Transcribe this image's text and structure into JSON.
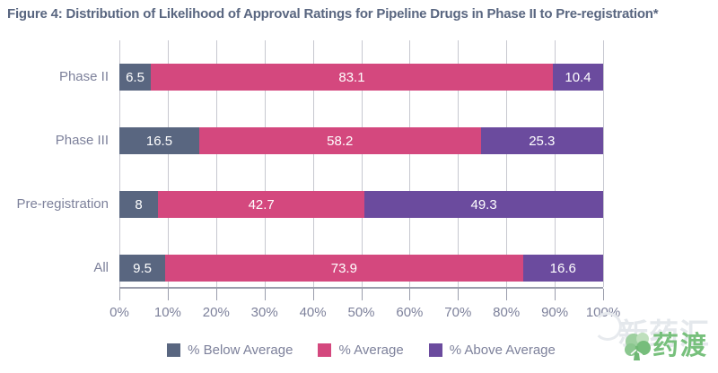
{
  "title": "Figure 4: Distribution of Likelihood of Approval Ratings for Pipeline Drugs in Phase II to Pre-registration*",
  "chart_data": {
    "type": "bar",
    "orientation": "horizontal",
    "stacked": true,
    "categories": [
      "Phase II",
      "Phase III",
      "Pre-registration",
      "All"
    ],
    "series": [
      {
        "name": "% Below Average",
        "color": "#596680",
        "values": [
          6.5,
          16.5,
          8,
          9.5
        ]
      },
      {
        "name": "% Average",
        "color": "#d4487e",
        "values": [
          83.1,
          58.2,
          42.7,
          73.9
        ]
      },
      {
        "name": "% Above Average",
        "color": "#6b4b9e",
        "values": [
          10.4,
          25.3,
          49.3,
          16.6
        ]
      }
    ],
    "x_ticks": [
      "0%",
      "10%",
      "20%",
      "30%",
      "40%",
      "50%",
      "60%",
      "70%",
      "80%",
      "90%",
      "100%"
    ],
    "xlim": [
      0,
      100
    ],
    "grid": "vertical",
    "legend_position": "bottom",
    "value_labels": "inside-white"
  },
  "watermark": {
    "background_text": "新药汇",
    "logo_text": "药渡",
    "logo_color": "#77c07c"
  }
}
